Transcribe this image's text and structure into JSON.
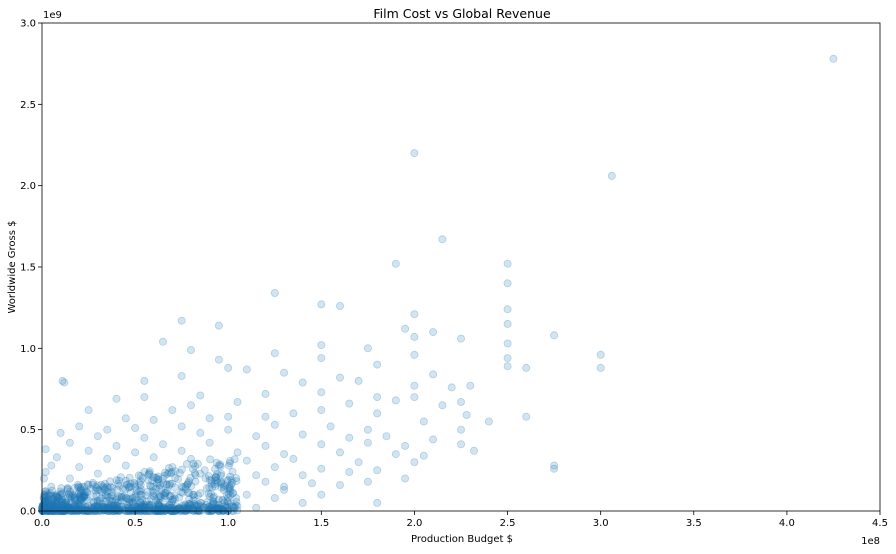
{
  "chart_data": {
    "type": "scatter",
    "title": "Film Cost vs Global Revenue",
    "xlabel": "Production Budget $",
    "ylabel": "Worldwide Gross $",
    "x_offset_label": "1e8",
    "y_offset_label": "1e9",
    "xlim": [
      0,
      4.5
    ],
    "ylim": [
      0,
      3.0
    ],
    "x_ticks": [
      0.0,
      0.5,
      1.0,
      1.5,
      2.0,
      2.5,
      3.0,
      3.5,
      4.0,
      4.5
    ],
    "x_tick_labels": [
      "0.0",
      "0.5",
      "1.0",
      "1.5",
      "2.0",
      "2.5",
      "3.0",
      "3.5",
      "4.0",
      "4.5"
    ],
    "y_ticks": [
      0.0,
      0.5,
      1.0,
      1.5,
      2.0,
      2.5,
      3.0
    ],
    "y_tick_labels": [
      "0.0",
      "0.5",
      "1.0",
      "1.5",
      "2.0",
      "2.5",
      "3.0"
    ],
    "marker_color": "#1f77b4",
    "marker_alpha": 0.2,
    "grid": false,
    "points": [
      [
        4.25,
        2.78
      ],
      [
        2.0,
        2.2
      ],
      [
        3.06,
        2.06
      ],
      [
        2.15,
        1.67
      ],
      [
        2.5,
        1.52
      ],
      [
        1.9,
        1.52
      ],
      [
        2.5,
        1.4
      ],
      [
        1.25,
        1.34
      ],
      [
        1.5,
        1.27
      ],
      [
        1.6,
        1.26
      ],
      [
        2.5,
        1.24
      ],
      [
        2.0,
        1.21
      ],
      [
        0.75,
        1.17
      ],
      [
        0.95,
        1.14
      ],
      [
        2.5,
        1.15
      ],
      [
        1.95,
        1.12
      ],
      [
        2.1,
        1.1
      ],
      [
        2.75,
        1.08
      ],
      [
        2.0,
        1.07
      ],
      [
        2.25,
        1.06
      ],
      [
        0.65,
        1.04
      ],
      [
        0.8,
        0.99
      ],
      [
        1.5,
        1.02
      ],
      [
        2.5,
        1.03
      ],
      [
        1.75,
        1.0
      ],
      [
        1.25,
        0.97
      ],
      [
        2.0,
        0.96
      ],
      [
        3.0,
        0.96
      ],
      [
        0.95,
        0.93
      ],
      [
        2.5,
        0.94
      ],
      [
        1.0,
        0.88
      ],
      [
        1.1,
        0.87
      ],
      [
        1.5,
        0.94
      ],
      [
        1.8,
        0.9
      ],
      [
        2.5,
        0.89
      ],
      [
        3.0,
        0.88
      ],
      [
        0.55,
        0.8
      ],
      [
        0.75,
        0.83
      ],
      [
        0.11,
        0.8
      ],
      [
        0.12,
        0.79
      ],
      [
        1.3,
        0.85
      ],
      [
        1.6,
        0.82
      ],
      [
        2.1,
        0.84
      ],
      [
        2.6,
        0.88
      ],
      [
        2.0,
        0.77
      ],
      [
        2.3,
        0.77
      ],
      [
        1.4,
        0.79
      ],
      [
        1.7,
        0.8
      ],
      [
        2.2,
        0.76
      ],
      [
        1.5,
        0.73
      ],
      [
        1.2,
        0.72
      ],
      [
        0.85,
        0.71
      ],
      [
        0.55,
        0.7
      ],
      [
        1.8,
        0.7
      ],
      [
        2.0,
        0.7
      ],
      [
        2.25,
        0.67
      ],
      [
        0.4,
        0.69
      ],
      [
        0.8,
        0.65
      ],
      [
        1.05,
        0.67
      ],
      [
        1.65,
        0.66
      ],
      [
        1.9,
        0.68
      ],
      [
        2.15,
        0.65
      ],
      [
        0.25,
        0.62
      ],
      [
        0.7,
        0.62
      ],
      [
        1.0,
        0.58
      ],
      [
        1.35,
        0.6
      ],
      [
        2.6,
        0.58
      ],
      [
        2.28,
        0.59
      ],
      [
        0.45,
        0.57
      ],
      [
        0.6,
        0.56
      ],
      [
        0.9,
        0.57
      ],
      [
        1.2,
        0.58
      ],
      [
        1.5,
        0.62
      ],
      [
        1.8,
        0.6
      ],
      [
        2.05,
        0.55
      ],
      [
        2.4,
        0.55
      ],
      [
        0.2,
        0.52
      ],
      [
        0.35,
        0.5
      ],
      [
        0.5,
        0.51
      ],
      [
        0.75,
        0.52
      ],
      [
        1.0,
        0.5
      ],
      [
        1.25,
        0.53
      ],
      [
        1.55,
        0.52
      ],
      [
        1.75,
        0.5
      ],
      [
        2.25,
        0.5
      ],
      [
        0.1,
        0.48
      ],
      [
        0.3,
        0.46
      ],
      [
        0.55,
        0.45
      ],
      [
        0.85,
        0.48
      ],
      [
        1.15,
        0.46
      ],
      [
        1.4,
        0.47
      ],
      [
        1.65,
        0.45
      ],
      [
        1.85,
        0.46
      ],
      [
        2.1,
        0.44
      ],
      [
        2.25,
        0.41
      ],
      [
        2.32,
        0.37
      ],
      [
        0.15,
        0.42
      ],
      [
        0.4,
        0.4
      ],
      [
        0.65,
        0.41
      ],
      [
        0.9,
        0.42
      ],
      [
        1.2,
        0.4
      ],
      [
        1.5,
        0.41
      ],
      [
        1.75,
        0.42
      ],
      [
        1.95,
        0.4
      ],
      [
        2.05,
        0.34
      ],
      [
        2.0,
        0.3
      ],
      [
        0.02,
        0.38
      ],
      [
        0.25,
        0.37
      ],
      [
        0.5,
        0.36
      ],
      [
        0.75,
        0.37
      ],
      [
        1.05,
        0.36
      ],
      [
        1.3,
        0.35
      ],
      [
        1.6,
        0.36
      ],
      [
        1.9,
        0.35
      ],
      [
        2.75,
        0.28
      ],
      [
        2.75,
        0.26
      ],
      [
        0.08,
        0.33
      ],
      [
        0.35,
        0.32
      ],
      [
        0.6,
        0.33
      ],
      [
        0.8,
        0.32
      ],
      [
        1.1,
        0.31
      ],
      [
        1.35,
        0.32
      ],
      [
        1.7,
        0.3
      ],
      [
        1.95,
        0.2
      ],
      [
        1.8,
        0.25
      ],
      [
        0.05,
        0.28
      ],
      [
        0.2,
        0.27
      ],
      [
        0.45,
        0.28
      ],
      [
        0.7,
        0.27
      ],
      [
        0.95,
        0.28
      ],
      [
        1.25,
        0.27
      ],
      [
        1.5,
        0.26
      ],
      [
        1.65,
        0.24
      ],
      [
        0.02,
        0.24
      ],
      [
        0.3,
        0.23
      ],
      [
        0.55,
        0.24
      ],
      [
        0.85,
        0.23
      ],
      [
        1.15,
        0.22
      ],
      [
        1.4,
        0.22
      ],
      [
        1.75,
        0.18
      ],
      [
        1.8,
        0.05
      ],
      [
        1.5,
        0.1
      ],
      [
        1.3,
        0.15
      ],
      [
        1.6,
        0.16
      ],
      [
        0.01,
        0.2
      ],
      [
        0.15,
        0.2
      ],
      [
        0.4,
        0.19
      ],
      [
        0.65,
        0.2
      ],
      [
        0.9,
        0.19
      ],
      [
        1.2,
        0.18
      ],
      [
        1.45,
        0.17
      ],
      [
        0.05,
        0.15
      ],
      [
        0.25,
        0.16
      ],
      [
        0.5,
        0.15
      ],
      [
        0.75,
        0.15
      ],
      [
        1.0,
        0.14
      ],
      [
        1.3,
        0.13
      ],
      [
        0.1,
        0.12
      ],
      [
        0.35,
        0.12
      ],
      [
        0.6,
        0.11
      ],
      [
        0.85,
        0.11
      ],
      [
        1.1,
        0.1
      ],
      [
        0.02,
        0.09
      ],
      [
        0.2,
        0.08
      ],
      [
        0.45,
        0.08
      ],
      [
        0.7,
        0.07
      ],
      [
        0.95,
        0.07
      ],
      [
        1.25,
        0.08
      ],
      [
        0.05,
        0.05
      ],
      [
        0.3,
        0.05
      ],
      [
        0.55,
        0.04
      ],
      [
        0.8,
        0.04
      ],
      [
        1.05,
        0.03
      ],
      [
        1.4,
        0.05
      ],
      [
        0.01,
        0.02
      ],
      [
        0.15,
        0.02
      ],
      [
        0.4,
        0.02
      ],
      [
        0.65,
        0.01
      ],
      [
        0.9,
        0.01
      ],
      [
        1.15,
        0.02
      ]
    ]
  }
}
